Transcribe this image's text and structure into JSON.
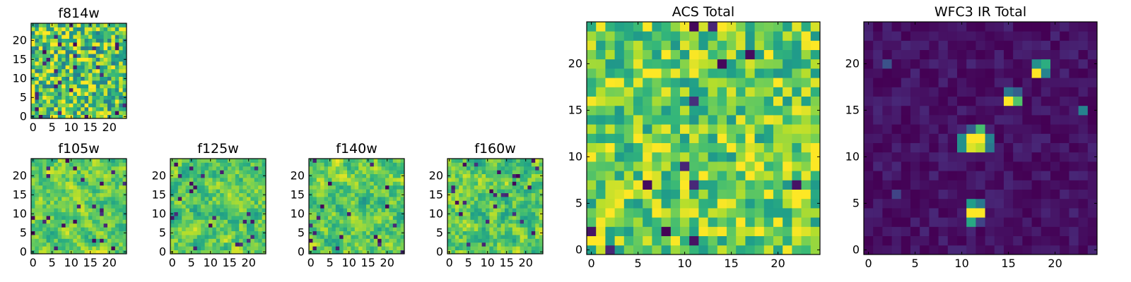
{
  "chart_data": [
    {
      "id": "f814w",
      "type": "heatmap",
      "title": "f814w",
      "grid_size": 25,
      "colormap": "viridis",
      "xlim": [
        -0.5,
        24.5
      ],
      "ylim": [
        -0.5,
        24.5
      ],
      "xticks": [
        0,
        5,
        10,
        15,
        20
      ],
      "xtick_labels": [
        "0",
        "5",
        "10",
        "15",
        "20"
      ],
      "yticks": [
        0,
        5,
        10,
        15,
        20
      ],
      "ytick_labels": [
        "0",
        "5",
        "10",
        "15",
        "20"
      ],
      "pattern": "noise",
      "seed": 814,
      "spread": 0.34,
      "base": 0.74,
      "hotspots": []
    },
    {
      "id": "f105w",
      "type": "heatmap",
      "title": "f105w",
      "grid_size": 25,
      "colormap": "viridis",
      "xlim": [
        -0.5,
        24.5
      ],
      "ylim": [
        -0.5,
        24.5
      ],
      "xticks": [
        0,
        5,
        10,
        15,
        20
      ],
      "xtick_labels": [
        "0",
        "5",
        "10",
        "15",
        "20"
      ],
      "yticks": [
        0,
        5,
        10,
        15,
        20
      ],
      "ytick_labels": [
        "0",
        "5",
        "10",
        "15",
        "20"
      ],
      "pattern": "smooth",
      "seed": 105,
      "spread": 0.3,
      "base": 0.76,
      "hotspots": []
    },
    {
      "id": "f125w",
      "type": "heatmap",
      "title": "f125w",
      "grid_size": 25,
      "colormap": "viridis",
      "xlim": [
        -0.5,
        24.5
      ],
      "ylim": [
        -0.5,
        24.5
      ],
      "xticks": [
        0,
        5,
        10,
        15,
        20
      ],
      "xtick_labels": [
        "0",
        "5",
        "10",
        "15",
        "20"
      ],
      "yticks": [
        0,
        5,
        10,
        15,
        20
      ],
      "ytick_labels": [
        "0",
        "5",
        "10",
        "15",
        "20"
      ],
      "pattern": "smooth",
      "seed": 125,
      "spread": 0.32,
      "base": 0.74,
      "hotspots": []
    },
    {
      "id": "f140w",
      "type": "heatmap",
      "title": "f140w",
      "grid_size": 25,
      "colormap": "viridis",
      "xlim": [
        -0.5,
        24.5
      ],
      "ylim": [
        -0.5,
        24.5
      ],
      "xticks": [
        0,
        5,
        10,
        15,
        20
      ],
      "xtick_labels": [
        "0",
        "5",
        "10",
        "15",
        "20"
      ],
      "yticks": [
        0,
        5,
        10,
        15,
        20
      ],
      "ytick_labels": [
        "0",
        "5",
        "10",
        "15",
        "20"
      ],
      "pattern": "smooth",
      "seed": 140,
      "spread": 0.32,
      "base": 0.75,
      "hotspots": []
    },
    {
      "id": "f160w",
      "type": "heatmap",
      "title": "f160w",
      "grid_size": 25,
      "colormap": "viridis",
      "xlim": [
        -0.5,
        24.5
      ],
      "ylim": [
        -0.5,
        24.5
      ],
      "xticks": [
        0,
        5,
        10,
        15,
        20
      ],
      "xtick_labels": [
        "0",
        "5",
        "10",
        "15",
        "20"
      ],
      "yticks": [
        0,
        5,
        10,
        15,
        20
      ],
      "ytick_labels": [
        "0",
        "5",
        "10",
        "15",
        "20"
      ],
      "pattern": "smooth",
      "seed": 160,
      "spread": 0.33,
      "base": 0.74,
      "hotspots": []
    },
    {
      "id": "acs-total",
      "type": "heatmap",
      "title": "ACS Total",
      "grid_size": 25,
      "colormap": "viridis",
      "xlim": [
        -0.5,
        24.5
      ],
      "ylim": [
        -0.5,
        24.5
      ],
      "xticks": [
        0,
        5,
        10,
        15,
        20
      ],
      "xtick_labels": [
        "0",
        "5",
        "10",
        "15",
        "20"
      ],
      "yticks": [
        0,
        5,
        10,
        15,
        20
      ],
      "ytick_labels": [
        "0",
        "5",
        "10",
        "15",
        "20"
      ],
      "pattern": "noise",
      "seed": 2814,
      "spread": 0.26,
      "base": 0.78,
      "hotspots": []
    },
    {
      "id": "wfc3-ir-total",
      "type": "heatmap",
      "title": "WFC3 IR Total",
      "grid_size": 25,
      "colormap": "viridis",
      "xlim": [
        -0.5,
        24.5
      ],
      "ylim": [
        -0.5,
        24.5
      ],
      "xticks": [
        0,
        5,
        10,
        15,
        20
      ],
      "xtick_labels": [
        "0",
        "5",
        "10",
        "15",
        "20"
      ],
      "yticks": [
        0,
        5,
        10,
        15,
        20
      ],
      "ytick_labels": [
        "0",
        "5",
        "10",
        "15",
        "20"
      ],
      "pattern": "background",
      "seed": 3160,
      "spread": 0.06,
      "base": 0.05,
      "hotspots": [
        {
          "x": 18,
          "y": 19,
          "value": 1.0
        },
        {
          "x": 19,
          "y": 20,
          "value": 0.62
        },
        {
          "x": 18,
          "y": 20,
          "value": 0.5
        },
        {
          "x": 19,
          "y": 19,
          "value": 0.45
        },
        {
          "x": 15,
          "y": 16,
          "value": 1.0
        },
        {
          "x": 16,
          "y": 16,
          "value": 0.72
        },
        {
          "x": 15,
          "y": 17,
          "value": 0.4
        },
        {
          "x": 16,
          "y": 17,
          "value": 0.3
        },
        {
          "x": 11,
          "y": 12,
          "value": 1.0
        },
        {
          "x": 12,
          "y": 12,
          "value": 1.0
        },
        {
          "x": 11,
          "y": 11,
          "value": 0.95
        },
        {
          "x": 12,
          "y": 11,
          "value": 0.9
        },
        {
          "x": 12,
          "y": 13,
          "value": 0.7
        },
        {
          "x": 10,
          "y": 12,
          "value": 0.5
        },
        {
          "x": 13,
          "y": 12,
          "value": 0.45
        },
        {
          "x": 10,
          "y": 11,
          "value": 0.5
        },
        {
          "x": 13,
          "y": 11,
          "value": 0.4
        },
        {
          "x": 11,
          "y": 13,
          "value": 0.3
        },
        {
          "x": 11,
          "y": 4,
          "value": 1.0
        },
        {
          "x": 12,
          "y": 4,
          "value": 1.0
        },
        {
          "x": 11,
          "y": 5,
          "value": 0.55
        },
        {
          "x": 11,
          "y": 3,
          "value": 0.6
        },
        {
          "x": 12,
          "y": 5,
          "value": 0.4
        },
        {
          "x": 12,
          "y": 3,
          "value": 0.2
        },
        {
          "x": 23,
          "y": 15,
          "value": 0.45
        },
        {
          "x": 2,
          "y": 20,
          "value": 0.25
        },
        {
          "x": 3,
          "y": 6,
          "value": 0.2
        }
      ]
    }
  ]
}
